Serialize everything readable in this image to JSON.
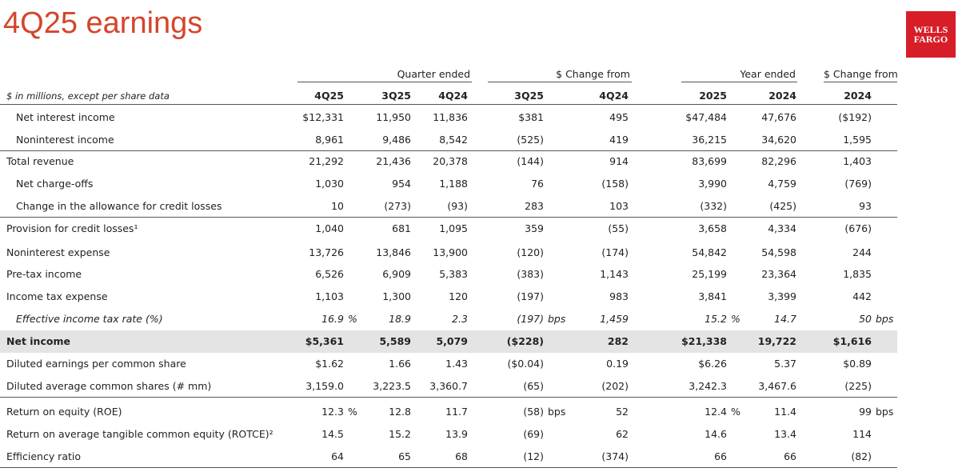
{
  "header": {
    "title": "4Q25 earnings",
    "logo": [
      "WELLS",
      "FARGO"
    ]
  },
  "table": {
    "groups": [
      "Quarter ended",
      "$ Change from",
      "Year ended",
      "$ Change from"
    ],
    "corner": "$ in millions, except per share data",
    "columns": [
      "4Q25",
      "3Q25",
      "4Q24",
      "3Q25",
      "4Q24",
      "2025",
      "2024",
      "2024"
    ],
    "rows": [
      {
        "label": "Net interest income",
        "indent": true,
        "cells": [
          "$12,331",
          "11,950",
          "11,836",
          "$381",
          "495",
          "$47,484",
          "47,676",
          "($192)"
        ]
      },
      {
        "label": "Noninterest income",
        "indent": true,
        "rule": true,
        "cells": [
          "8,961",
          "9,486",
          "8,542",
          "(525)",
          "419",
          "36,215",
          "34,620",
          "1,595"
        ]
      },
      {
        "label": "Total revenue",
        "cells": [
          "21,292",
          "21,436",
          "20,378",
          "(144)",
          "914",
          "83,699",
          "82,296",
          "1,403"
        ]
      },
      {
        "label": "Net charge-offs",
        "indent": true,
        "cells": [
          "1,030",
          "954",
          "1,188",
          "76",
          "(158)",
          "3,990",
          "4,759",
          "(769)"
        ]
      },
      {
        "label": "Change in the allowance for credit losses",
        "indent": true,
        "rule": true,
        "cells": [
          "10",
          "(273)",
          "(93)",
          "283",
          "103",
          "(332)",
          "(425)",
          "93"
        ]
      },
      {
        "label": "Provision for credit losses¹",
        "cells": [
          "1,040",
          "681",
          "1,095",
          "359",
          "(55)",
          "3,658",
          "4,334",
          "(676)"
        ]
      },
      {
        "label": "Noninterest expense",
        "cells": [
          "13,726",
          "13,846",
          "13,900",
          "(120)",
          "(174)",
          "54,842",
          "54,598",
          "244"
        ]
      },
      {
        "label": "Pre-tax income",
        "cells": [
          "6,526",
          "6,909",
          "5,383",
          "(383)",
          "1,143",
          "25,199",
          "23,364",
          "1,835"
        ]
      },
      {
        "label": "Income tax expense",
        "cells": [
          "1,103",
          "1,300",
          "120",
          "(197)",
          "983",
          "3,841",
          "3,399",
          "442"
        ]
      },
      {
        "label": "Effective income tax rate (%)",
        "indent": true,
        "italic": true,
        "cells": [
          {
            "text": "16.9",
            "unit": "%"
          },
          "18.9",
          "2.3",
          {
            "text": "(197)",
            "unit": "bps"
          },
          "1,459",
          {
            "text": "15.2",
            "unit": "%"
          },
          "14.7",
          {
            "text": "50",
            "unit": "bps"
          }
        ]
      },
      {
        "label": "Net income",
        "bold": true,
        "cells": [
          "$5,361",
          "5,589",
          "5,079",
          "($228)",
          "282",
          "$21,338",
          "19,722",
          "$1,616"
        ]
      },
      {
        "label": "Diluted earnings per common share",
        "cells": [
          "$1.62",
          "1.66",
          "1.43",
          "($0.04)",
          "0.19",
          "$6.26",
          "5.37",
          "$0.89"
        ]
      },
      {
        "label": "Diluted average common shares (# mm)",
        "rule": true,
        "cells": [
          "3,159.0",
          "3,223.5",
          "3,360.7",
          "(65)",
          "(202)",
          "3,242.3",
          "3,467.6",
          "(225)"
        ]
      },
      {
        "label": "Return on equity (ROE)",
        "cells": [
          {
            "text": "12.3",
            "unit": "%"
          },
          "12.8",
          "11.7",
          {
            "text": "(58)",
            "unit": "bps"
          },
          "52",
          {
            "text": "12.4",
            "unit": "%"
          },
          "11.4",
          {
            "text": "99",
            "unit": "bps"
          }
        ]
      },
      {
        "label": "Return on average tangible common equity (ROTCE)²",
        "cells": [
          "14.5",
          "15.2",
          "13.9",
          "(69)",
          "62",
          "14.6",
          "13.4",
          "114"
        ]
      },
      {
        "label": "Efficiency ratio",
        "rule": true,
        "cells": [
          "64",
          "65",
          "68",
          "(12)",
          "(374)",
          "66",
          "66",
          "(82)"
        ]
      }
    ]
  }
}
